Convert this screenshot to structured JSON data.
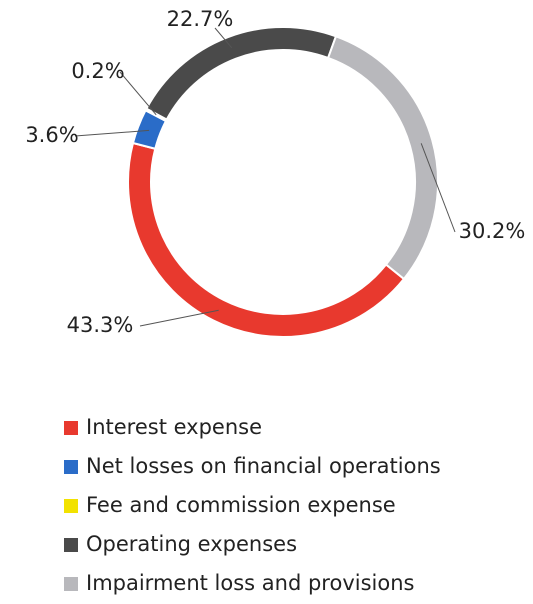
{
  "chart_data": {
    "type": "donut",
    "categories": [
      "Interest expense",
      "Net losses on financial operations",
      "Fee and commission expense",
      "Operating expenses",
      "Impairment loss and provisions"
    ],
    "values": [
      43.3,
      3.6,
      0.2,
      22.7,
      30.2
    ],
    "value_labels": [
      "43.3%",
      "3.6%",
      "0.2%",
      "22.7%",
      "30.2%"
    ],
    "colors": [
      "#e8392e",
      "#2a6cc8",
      "#f2e200",
      "#4a4a4a",
      "#b8b8bc"
    ],
    "legend": "bottom"
  }
}
